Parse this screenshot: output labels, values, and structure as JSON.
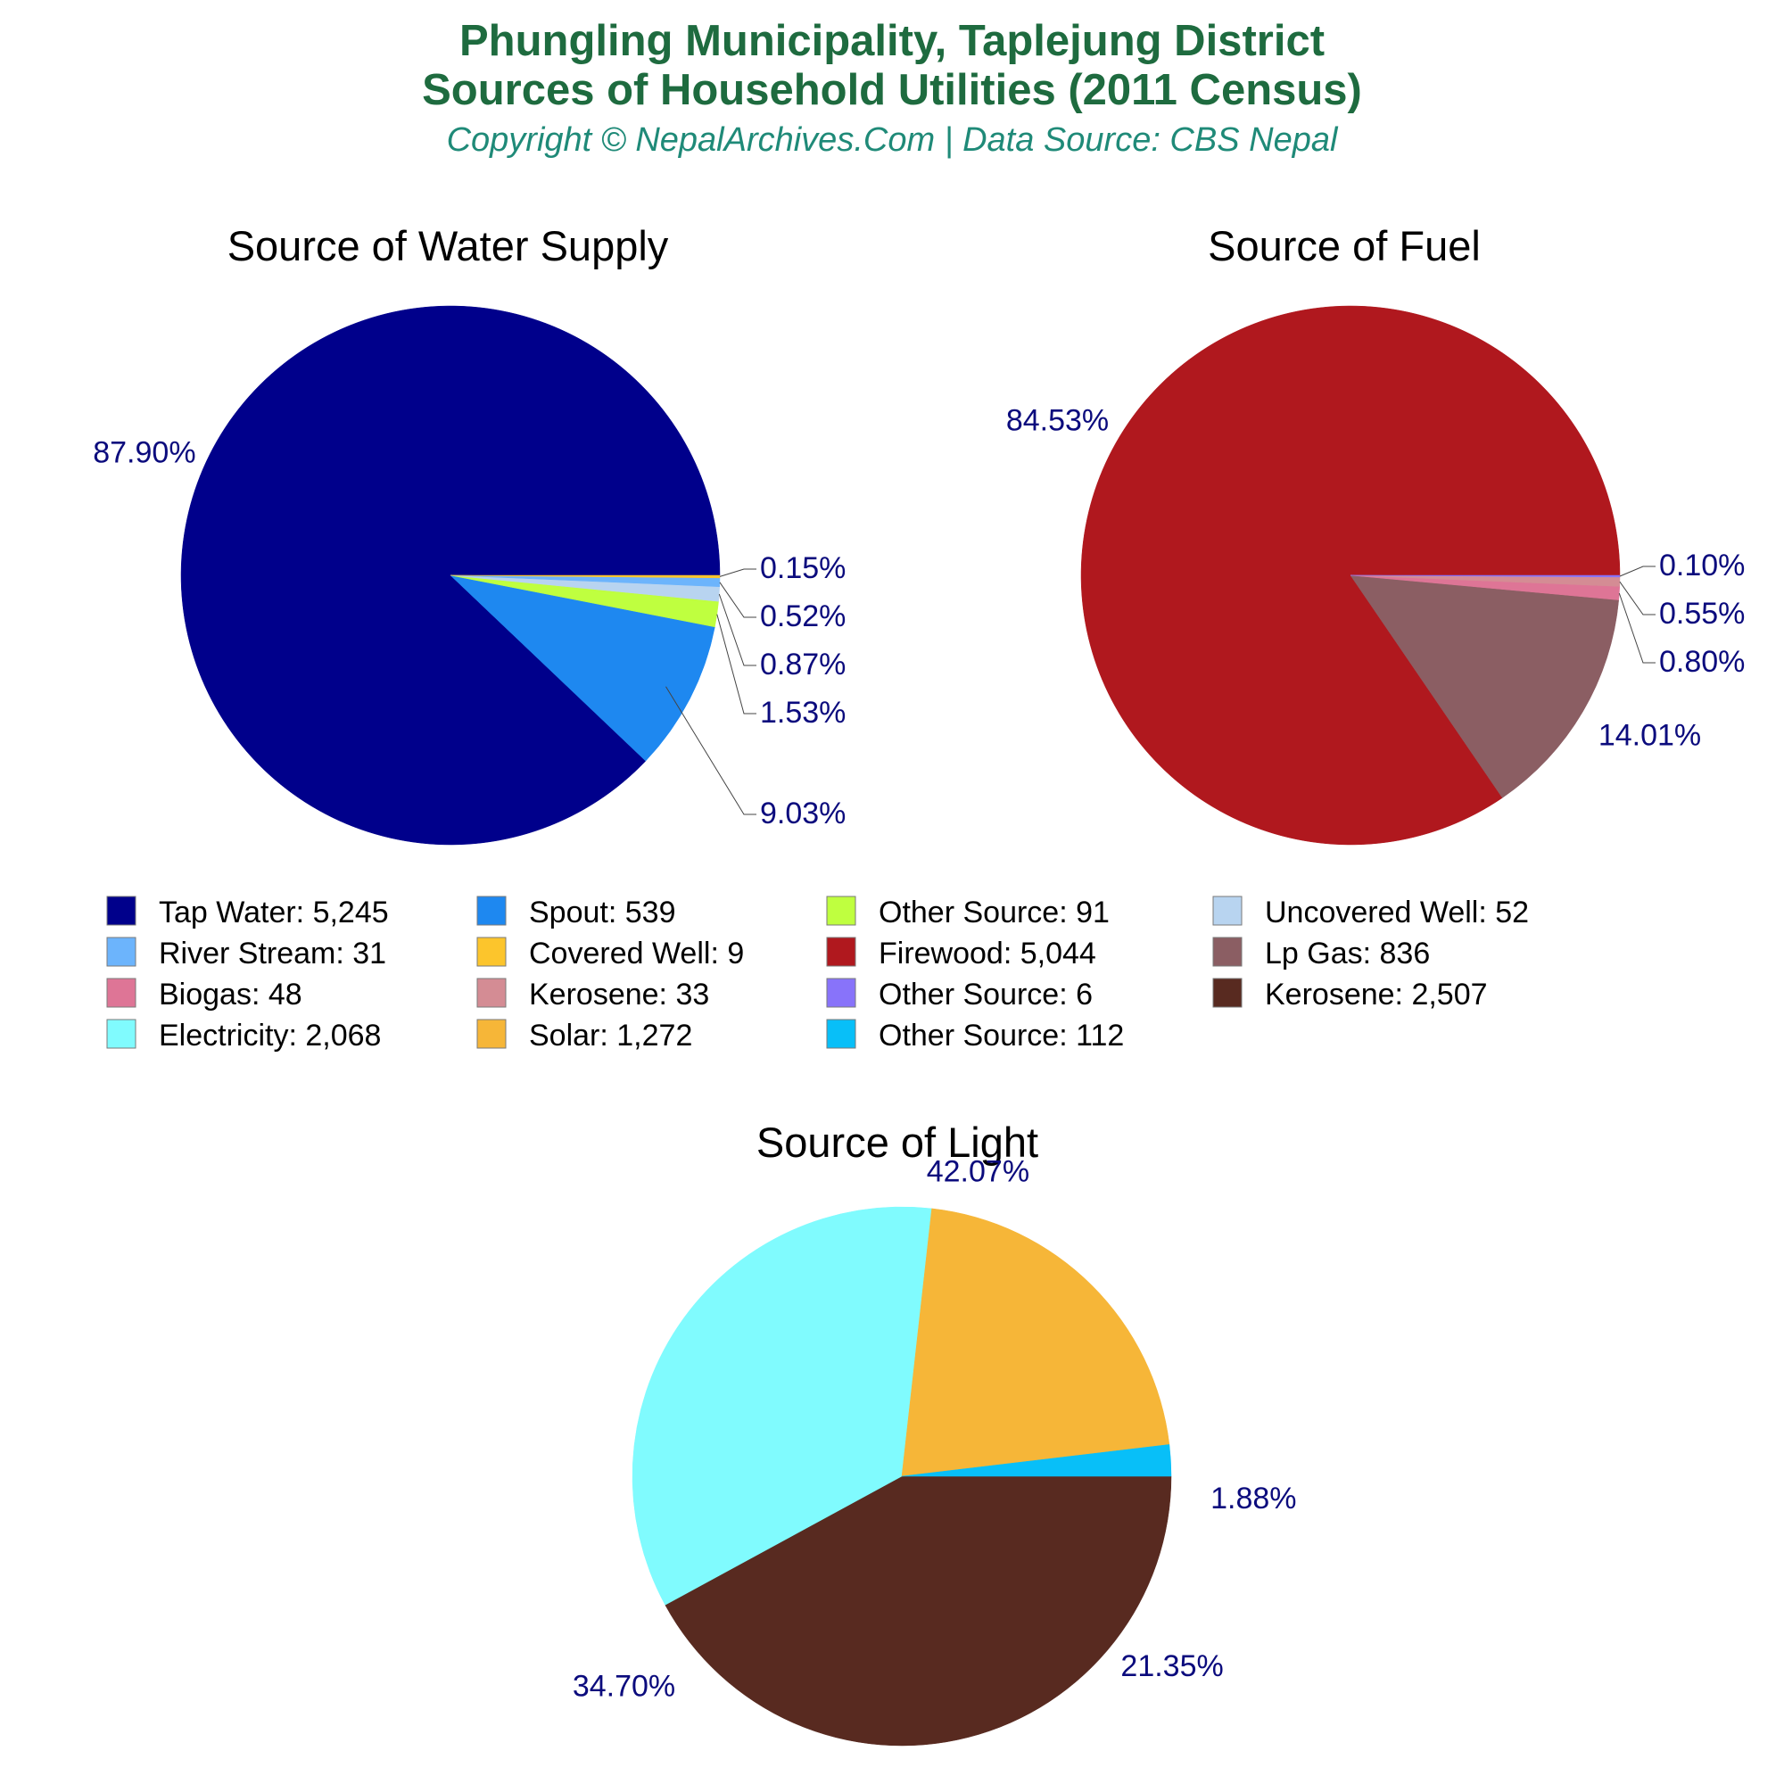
{
  "header": {
    "title_line1": "Phungling Municipality, Taplejung District",
    "title_line2": "Sources of Household Utilities (2011 Census)",
    "subtitle": "Copyright © NepalArchives.Com | Data Source: CBS Nepal"
  },
  "chart_data": [
    {
      "type": "pie",
      "title": "Source of Water Supply",
      "slices": [
        {
          "label": "Tap Water",
          "value": 5245,
          "pct": "87.90%",
          "color": "#00008b"
        },
        {
          "label": "Spout",
          "value": 539,
          "pct": "9.03%",
          "color": "#1e88f0"
        },
        {
          "label": "Other Source",
          "value": 91,
          "pct": "1.53%",
          "color": "#bfff3f"
        },
        {
          "label": "Uncovered Well",
          "value": 52,
          "pct": "0.87%",
          "color": "#b8d4f0"
        },
        {
          "label": "River Stream",
          "value": 31,
          "pct": "0.52%",
          "color": "#6cb4fc"
        },
        {
          "label": "Covered Well",
          "value": 9,
          "pct": "0.15%",
          "color": "#fcc52c"
        }
      ]
    },
    {
      "type": "pie",
      "title": "Source of Fuel",
      "slices": [
        {
          "label": "Firewood",
          "value": 5044,
          "pct": "84.53%",
          "color": "#b0181e"
        },
        {
          "label": "Lp Gas",
          "value": 836,
          "pct": "14.01%",
          "color": "#8b5e63"
        },
        {
          "label": "Biogas",
          "value": 48,
          "pct": "0.80%",
          "color": "#de7596"
        },
        {
          "label": "Kerosene",
          "value": 33,
          "pct": "0.55%",
          "color": "#d48c94"
        },
        {
          "label": "Other Source",
          "value": 6,
          "pct": "0.10%",
          "color": "#8873fa"
        }
      ]
    },
    {
      "type": "pie",
      "title": "Source of Light",
      "slices": [
        {
          "label": "Kerosene",
          "value": 2507,
          "pct": "42.07%",
          "color": "#582a20"
        },
        {
          "label": "Electricity",
          "value": 2068,
          "pct": "34.70%",
          "color": "#80fbfe"
        },
        {
          "label": "Solar",
          "value": 1272,
          "pct": "21.35%",
          "color": "#f6b638"
        },
        {
          "label": "Other Source",
          "value": 112,
          "pct": "1.88%",
          "color": "#08bff8"
        }
      ]
    }
  ],
  "legend": {
    "columns": 4,
    "entries": [
      {
        "text": "Tap Water: 5,245",
        "color": "#00008b"
      },
      {
        "text": "Spout: 539",
        "color": "#1e88f0"
      },
      {
        "text": "Other Source: 91",
        "color": "#bfff3f"
      },
      {
        "text": "Uncovered Well: 52",
        "color": "#b8d4f0"
      },
      {
        "text": "River Stream: 31",
        "color": "#6cb4fc"
      },
      {
        "text": "Covered Well: 9",
        "color": "#fcc52c"
      },
      {
        "text": "Firewood: 5,044",
        "color": "#b0181e"
      },
      {
        "text": "Lp Gas: 836",
        "color": "#8b5e63"
      },
      {
        "text": "Biogas: 48",
        "color": "#de7596"
      },
      {
        "text": "Kerosene: 33",
        "color": "#d48c94"
      },
      {
        "text": "Other Source: 6",
        "color": "#8873fa"
      },
      {
        "text": "Kerosene: 2,507",
        "color": "#582a20"
      },
      {
        "text": "Electricity: 2,068",
        "color": "#80fbfe"
      },
      {
        "text": "Solar: 1,272",
        "color": "#f6b638"
      },
      {
        "text": "Other Source: 112",
        "color": "#08bff8"
      }
    ]
  }
}
